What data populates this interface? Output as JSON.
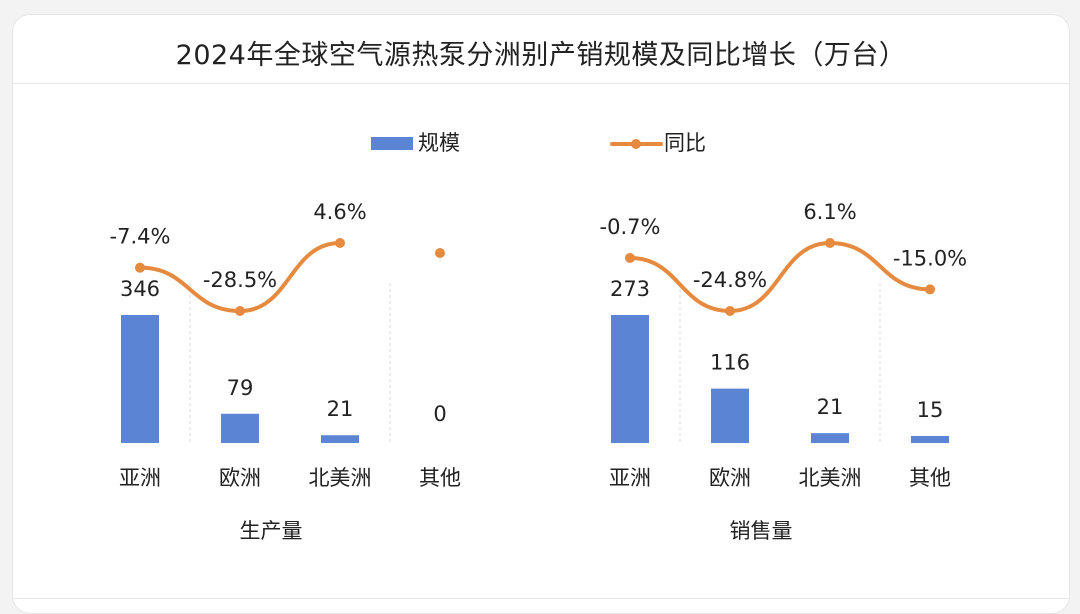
{
  "title": "2024年全球空气源热泵分洲别产销规模及同比增长（万台）",
  "colors": {
    "bar": "#5b84d4",
    "line": "#e58a3f",
    "text": "#222222",
    "divider": "#d9d9d9"
  },
  "legend": {
    "bar_label": "规模",
    "line_label": "同比",
    "placement": "top"
  },
  "chart_data": [
    {
      "type": "bar",
      "title": "",
      "xlabel": "生产量",
      "ylabel": "",
      "categories": [
        "亚洲",
        "欧洲",
        "北美洲",
        "其他"
      ],
      "series": [
        {
          "name": "规模",
          "type": "bar",
          "values": [
            346,
            79,
            21,
            0
          ],
          "labels": [
            "346",
            "79",
            "21",
            "0"
          ]
        },
        {
          "name": "同比",
          "type": "line",
          "values": [
            -7.4,
            -28.5,
            4.6,
            null
          ],
          "labels": [
            "-7.4%",
            "-28.5%",
            "4.6%",
            ""
          ]
        }
      ]
    },
    {
      "type": "bar",
      "title": "",
      "xlabel": "销售量",
      "ylabel": "",
      "categories": [
        "亚洲",
        "欧洲",
        "北美洲",
        "其他"
      ],
      "series": [
        {
          "name": "规模",
          "type": "bar",
          "values": [
            273,
            116,
            21,
            15
          ],
          "labels": [
            "273",
            "116",
            "21",
            "15"
          ]
        },
        {
          "name": "同比",
          "type": "line",
          "values": [
            -0.7,
            -24.8,
            6.1,
            -15.0
          ],
          "labels": [
            "-0.7%",
            "-24.8%",
            "6.1%",
            "-15.0%"
          ]
        }
      ]
    }
  ]
}
